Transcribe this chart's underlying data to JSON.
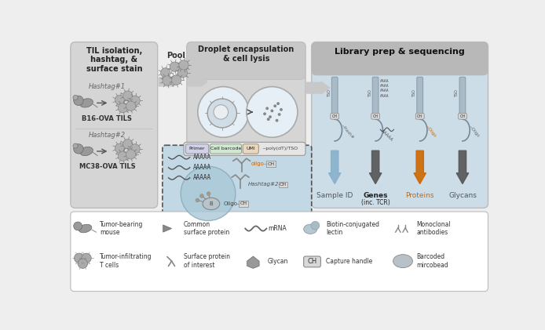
{
  "bg_color": "#eeeeee",
  "panel1_bg": "#d5d5d5",
  "panel1_title": "TIL isolation,\nhashtag, &\nsurface stain",
  "panel3_bg": "#d5d5d5",
  "panel3_title": "Droplet encapsulation\n& cell lysis",
  "panel4_bg": "#ccdde8",
  "panel4_header_bg": "#b5b5b5",
  "panel4_title": "Library prep & sequencing",
  "hashtag1": "Hashtag#1",
  "hashtag2": "Hashtag#2",
  "b16": "B16-OVA TILS",
  "mc38": "MC38-OVA TILS",
  "pool_label": "Pool",
  "oligo_color": "#cc6600",
  "labels_bottom": [
    "Sample ID",
    "Genes\n(inc. TCR)",
    "Proteins",
    "Glycans"
  ],
  "label_colors": [
    "#555555",
    "#222222",
    "#cc6600",
    "#555555"
  ],
  "legend_items_row1": [
    "Tumor-bearing\nmouse",
    "Common\nsurface protein",
    "mRNA",
    "Biotin-conjugated\nlectin",
    "Monoclonal\nantibodies"
  ],
  "legend_items_row2": [
    "Tumor-infiltrating\nT cells",
    "Surface protein\nof interest",
    "Glycan",
    "Capture handle",
    "Barcoded\nmircobead"
  ],
  "dark_gray": "#333333",
  "med_gray": "#888888"
}
